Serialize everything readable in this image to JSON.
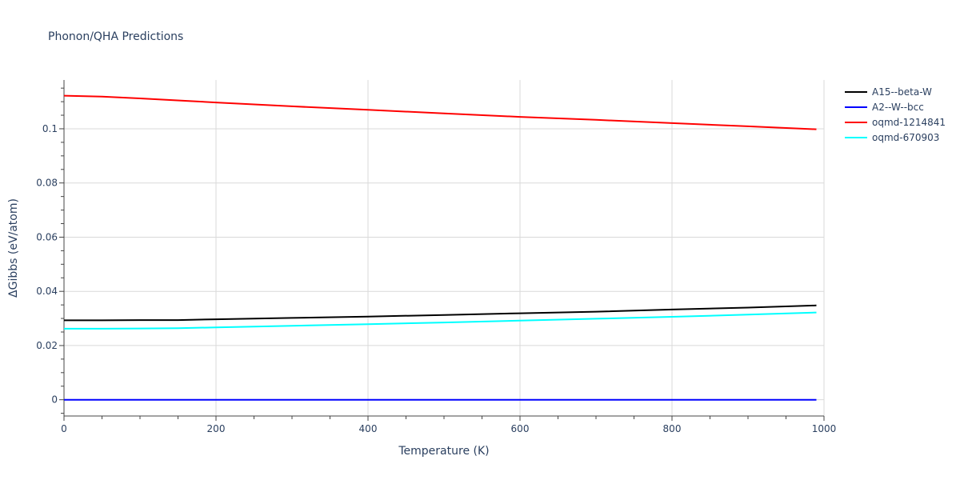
{
  "chart_data": {
    "type": "line",
    "title": "Phonon/QHA Predictions",
    "xlabel": "Temperature (K)",
    "ylabel": "ΔGibbs (eV/atom)",
    "xlim": [
      0,
      1000
    ],
    "ylim": [
      -0.006,
      0.118
    ],
    "x_ticks": [
      0,
      200,
      400,
      600,
      800,
      1000
    ],
    "x_tick_labels": [
      "0",
      "200",
      "400",
      "600",
      "800",
      "1000"
    ],
    "y_ticks": [
      0,
      0.02,
      0.04,
      0.06,
      0.08,
      0.1
    ],
    "y_tick_labels": [
      "0",
      "0.02",
      "0.04",
      "0.06",
      "0.08",
      "0.1"
    ],
    "grid": true,
    "legend_position": "top-right",
    "series": [
      {
        "name": "A15--beta-W",
        "color": "#000000",
        "x": [
          0,
          50,
          100,
          150,
          200,
          300,
          400,
          500,
          600,
          700,
          800,
          900,
          990
        ],
        "y": [
          0.0293,
          0.0293,
          0.0294,
          0.0294,
          0.0297,
          0.0302,
          0.0307,
          0.0313,
          0.0319,
          0.0325,
          0.0333,
          0.034,
          0.0348
        ]
      },
      {
        "name": "A2--W--bcc",
        "color": "#0000ff",
        "x": [
          0,
          990
        ],
        "y": [
          0,
          0
        ]
      },
      {
        "name": "oqmd-1214841",
        "color": "#ff0000",
        "x": [
          0,
          50,
          100,
          200,
          300,
          400,
          500,
          600,
          700,
          800,
          900,
          990
        ],
        "y": [
          0.1122,
          0.1119,
          0.1112,
          0.1097,
          0.1083,
          0.107,
          0.1057,
          0.1044,
          0.1033,
          0.1021,
          0.1009,
          0.0998
        ]
      },
      {
        "name": "oqmd-670903",
        "color": "#00ffff",
        "x": [
          0,
          50,
          100,
          150,
          200,
          300,
          400,
          500,
          600,
          700,
          800,
          900,
          990
        ],
        "y": [
          0.0262,
          0.0262,
          0.0263,
          0.0264,
          0.0267,
          0.0273,
          0.0279,
          0.0285,
          0.0292,
          0.0299,
          0.0306,
          0.0314,
          0.0322
        ]
      }
    ]
  }
}
